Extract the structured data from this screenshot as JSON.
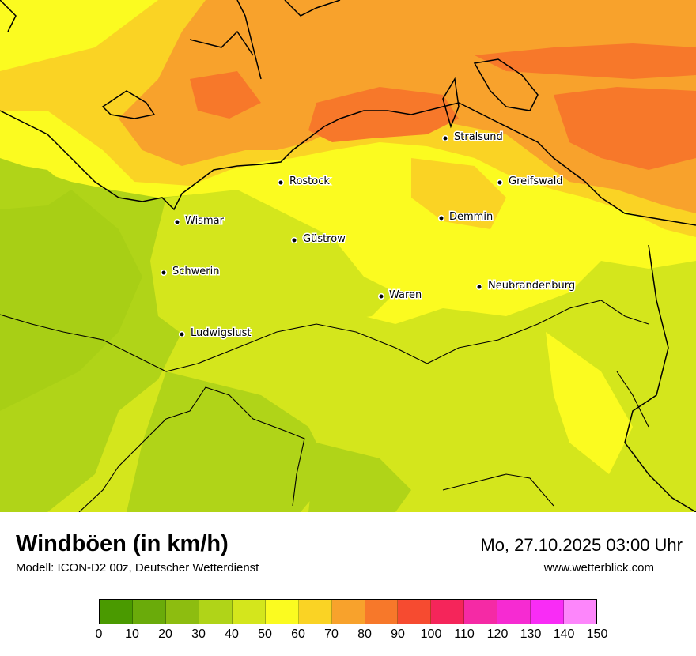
{
  "title": "Windböen (in km/h)",
  "subtitle": "Modell: ICON-D2 00z, Deutscher Wetterdienst",
  "datetime": "Mo, 27.10.2025 03:00 Uhr",
  "website": "www.wetterblick.com",
  "legend": {
    "ticks": [
      "0",
      "10",
      "20",
      "30",
      "40",
      "50",
      "60",
      "70",
      "80",
      "90",
      "100",
      "110",
      "120",
      "130",
      "140",
      "150"
    ],
    "colors": [
      "#4a9a00",
      "#6aab0a",
      "#8dbd10",
      "#b0d418",
      "#d4e61c",
      "#fbfb20",
      "#fad324",
      "#f8a22c",
      "#f7782a",
      "#f64b30",
      "#f5255a",
      "#f52aa5",
      "#f62bd2",
      "#f92cf6",
      "#fd86fb"
    ]
  },
  "cities": [
    {
      "name": "Stralsund"
    },
    {
      "name": "Rostock"
    },
    {
      "name": "Greifswald"
    },
    {
      "name": "Wismar"
    },
    {
      "name": "Demmin"
    },
    {
      "name": "Güstrow"
    },
    {
      "name": "Schwerin"
    },
    {
      "name": "Neubrandenburg"
    },
    {
      "name": "Waren"
    },
    {
      "name": "Ludwigslust"
    }
  ]
}
